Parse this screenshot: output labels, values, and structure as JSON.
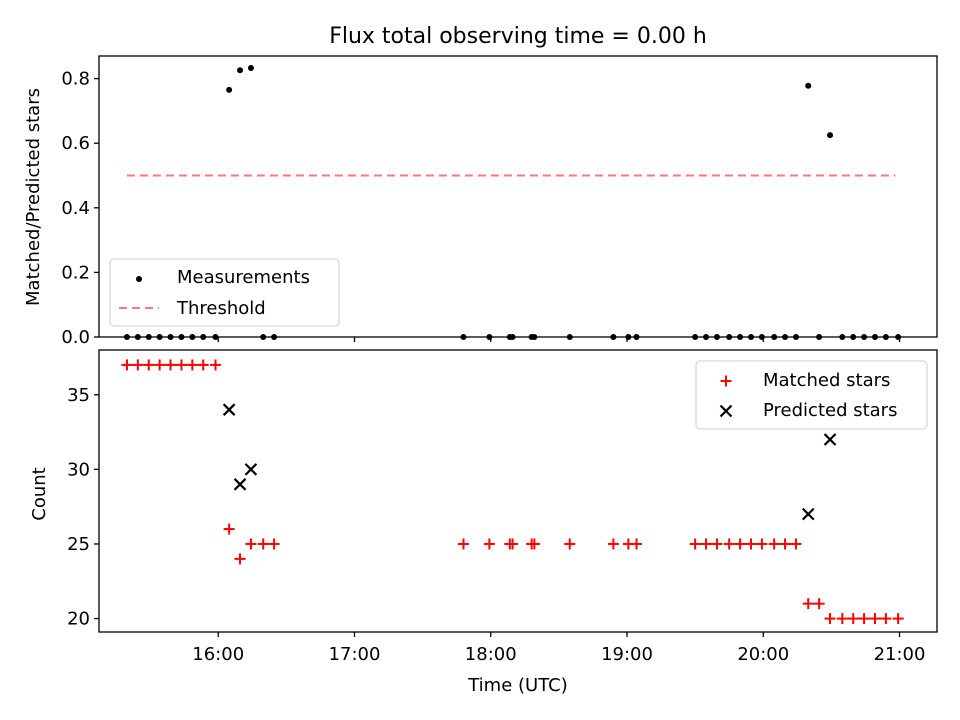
{
  "chart_data": [
    {
      "type": "scatter",
      "panel": "top",
      "title": "Flux total observing time = 0.00 h",
      "xlabel": "",
      "ylabel": "Matched/Predicted stars",
      "xlim": [
        15.125,
        21.275
      ],
      "ylim": [
        0.0,
        0.87
      ],
      "yticks": [
        0.0,
        0.2,
        0.4,
        0.6,
        0.8
      ],
      "ytick_labels": [
        "0.0",
        "0.2",
        "0.4",
        "0.6",
        "0.8"
      ],
      "xticks": [
        16,
        17,
        18,
        19,
        20,
        21
      ],
      "show_xtick_labels": false,
      "grid": false,
      "legend_position": "lower-left",
      "series": [
        {
          "name": "Measurements",
          "marker": "dot",
          "color": "#000000",
          "points": [
            [
              15.33,
              0.0
            ],
            [
              15.41,
              0.0
            ],
            [
              15.49,
              0.0
            ],
            [
              15.57,
              0.0
            ],
            [
              15.65,
              0.0
            ],
            [
              15.73,
              0.0
            ],
            [
              15.81,
              0.0
            ],
            [
              15.89,
              0.0
            ],
            [
              15.98,
              0.0
            ],
            [
              16.08,
              0.765
            ],
            [
              16.16,
              0.826
            ],
            [
              16.24,
              0.833
            ],
            [
              16.33,
              0.0
            ],
            [
              16.41,
              0.0
            ],
            [
              17.8,
              0.0
            ],
            [
              17.99,
              0.0
            ],
            [
              18.14,
              0.0
            ],
            [
              18.16,
              0.0
            ],
            [
              18.3,
              0.0
            ],
            [
              18.32,
              0.0
            ],
            [
              18.58,
              0.0
            ],
            [
              18.9,
              0.0
            ],
            [
              19.01,
              0.0
            ],
            [
              19.07,
              0.0
            ],
            [
              19.5,
              0.0
            ],
            [
              19.58,
              0.0
            ],
            [
              19.66,
              0.0
            ],
            [
              19.75,
              0.0
            ],
            [
              19.83,
              0.0
            ],
            [
              19.91,
              0.0
            ],
            [
              19.99,
              0.0
            ],
            [
              20.08,
              0.0
            ],
            [
              20.16,
              0.0
            ],
            [
              20.24,
              0.0
            ],
            [
              20.33,
              0.778
            ],
            [
              20.41,
              0.0
            ],
            [
              20.49,
              0.625
            ],
            [
              20.58,
              0.0
            ],
            [
              20.66,
              0.0
            ],
            [
              20.74,
              0.0
            ],
            [
              20.82,
              0.0
            ],
            [
              20.9,
              0.0
            ],
            [
              20.99,
              0.0
            ]
          ]
        },
        {
          "name": "Threshold",
          "style": "dashed",
          "color": "#ff7777",
          "x": [
            15.33,
            20.97
          ],
          "y": [
            0.5,
            0.5
          ]
        }
      ]
    },
    {
      "type": "scatter",
      "panel": "bottom",
      "xlabel": "Time (UTC)",
      "ylabel": "Count",
      "xlim": [
        15.125,
        21.275
      ],
      "ylim": [
        19.1,
        38.0
      ],
      "yticks": [
        20,
        25,
        30,
        35
      ],
      "ytick_labels": [
        "20",
        "25",
        "30",
        "35"
      ],
      "xticks": [
        16,
        17,
        18,
        19,
        20,
        21
      ],
      "xtick_labels": [
        "16:00",
        "17:00",
        "18:00",
        "19:00",
        "20:00",
        "21:00"
      ],
      "grid": false,
      "legend_position": "top-right",
      "series": [
        {
          "name": "Matched stars",
          "marker": "plus",
          "color": "#ff0000",
          "points": [
            [
              15.33,
              37
            ],
            [
              15.41,
              37
            ],
            [
              15.49,
              37
            ],
            [
              15.57,
              37
            ],
            [
              15.65,
              37
            ],
            [
              15.73,
              37
            ],
            [
              15.81,
              37
            ],
            [
              15.89,
              37
            ],
            [
              15.98,
              37
            ],
            [
              16.08,
              26
            ],
            [
              16.16,
              24
            ],
            [
              16.24,
              25
            ],
            [
              16.33,
              25
            ],
            [
              16.41,
              25
            ],
            [
              17.8,
              25
            ],
            [
              17.99,
              25
            ],
            [
              18.14,
              25
            ],
            [
              18.16,
              25
            ],
            [
              18.3,
              25
            ],
            [
              18.32,
              25
            ],
            [
              18.58,
              25
            ],
            [
              18.9,
              25
            ],
            [
              19.01,
              25
            ],
            [
              19.07,
              25
            ],
            [
              19.5,
              25
            ],
            [
              19.58,
              25
            ],
            [
              19.66,
              25
            ],
            [
              19.75,
              25
            ],
            [
              19.83,
              25
            ],
            [
              19.91,
              25
            ],
            [
              19.99,
              25
            ],
            [
              20.08,
              25
            ],
            [
              20.16,
              25
            ],
            [
              20.24,
              25
            ],
            [
              20.33,
              21
            ],
            [
              20.41,
              21
            ],
            [
              20.49,
              20
            ],
            [
              20.58,
              20
            ],
            [
              20.66,
              20
            ],
            [
              20.74,
              20
            ],
            [
              20.82,
              20
            ],
            [
              20.9,
              20
            ],
            [
              20.99,
              20
            ]
          ]
        },
        {
          "name": "Predicted stars",
          "marker": "x",
          "color": "#000000",
          "points": [
            [
              16.08,
              34
            ],
            [
              16.16,
              29
            ],
            [
              16.24,
              30
            ],
            [
              20.33,
              27
            ],
            [
              20.49,
              32
            ]
          ]
        }
      ]
    }
  ]
}
